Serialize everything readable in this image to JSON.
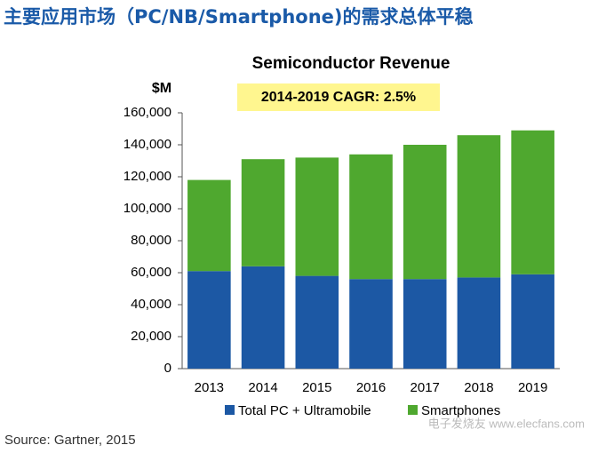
{
  "page_title": "主要应用市场（PC/NB/Smartphone)的需求总体平稳",
  "source": "Source: Gartner, 2015",
  "watermark": "电子发烧友 www.elecfans.com",
  "chart_data": {
    "type": "stacked_bar",
    "title": "Semiconductor Revenue",
    "y_label": "$M",
    "annotation": "2014-2019 CAGR: 2.5%",
    "categories": [
      "2013",
      "2014",
      "2015",
      "2016",
      "2017",
      "2018",
      "2019"
    ],
    "series": [
      {
        "name": "Total PC + Ultramobile",
        "color": "#1c58a4",
        "values": [
          61000,
          64000,
          58000,
          56000,
          56000,
          57000,
          59000
        ]
      },
      {
        "name": "Smartphones",
        "color": "#4fa82f",
        "values": [
          57000,
          67000,
          74000,
          78000,
          84000,
          89000,
          90000
        ]
      }
    ],
    "ylim": [
      0,
      160000
    ],
    "yticks": [
      0,
      {
        "value": 20000,
        "label": "20,000"
      },
      {
        "value": 40000,
        "label": "40,000"
      },
      {
        "value": 60000,
        "label": "60,000"
      },
      {
        "value": 80000,
        "label": "80,000"
      },
      {
        "value": 100000,
        "label": "100,000"
      },
      {
        "value": 120000,
        "label": "120,000"
      },
      {
        "value": 140000,
        "label": "140,000"
      },
      {
        "value": 160000,
        "label": "160,000"
      }
    ],
    "grid": false,
    "legend": "bottom"
  }
}
